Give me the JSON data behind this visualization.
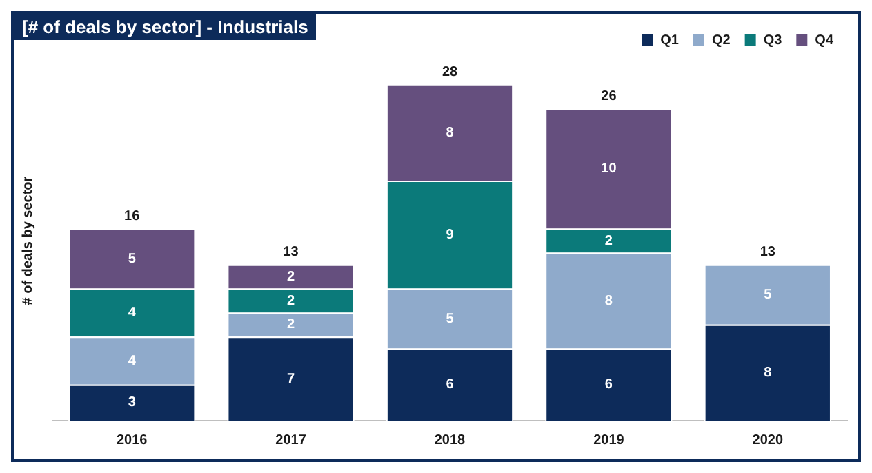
{
  "chart_data": {
    "type": "bar",
    "title": "[# of deals by sector] -  Industrials",
    "ylabel": "# of deals by sector",
    "categories": [
      "2016",
      "2017",
      "2018",
      "2019",
      "2020"
    ],
    "stacked": true,
    "data_labels": true,
    "legend": "top right",
    "grid": false,
    "tick_labels": "x",
    "totals": [
      "16",
      "13",
      "28",
      "26",
      "13"
    ],
    "series": [
      {
        "name": "Q1",
        "color": "#0d2b5a",
        "values": [
          3,
          7,
          6,
          6,
          8
        ]
      },
      {
        "name": "Q2",
        "color": "#8faacb",
        "values": [
          4,
          2,
          5,
          8,
          5
        ]
      },
      {
        "name": "Q3",
        "color": "#0b7a7a",
        "values": [
          4,
          2,
          9,
          2,
          null
        ]
      },
      {
        "name": "Q4",
        "color": "#654f7e",
        "values": [
          5,
          2,
          8,
          10,
          null
        ]
      }
    ]
  }
}
